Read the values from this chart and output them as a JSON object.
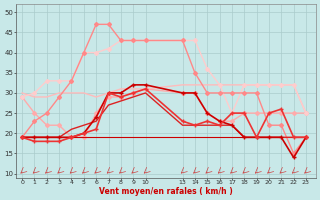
{
  "bg_color": "#c8e8e8",
  "grid_color": "#aacccc",
  "xlabel": "Vent moyen/en rafales ( km/h )",
  "xlabel_color": "#cc0000",
  "ylim": [
    9,
    52
  ],
  "yticks": [
    10,
    15,
    20,
    25,
    30,
    35,
    40,
    45,
    50
  ],
  "x_ticks": [
    0,
    1,
    2,
    3,
    4,
    5,
    6,
    7,
    8,
    9,
    10,
    13,
    14,
    15,
    16,
    17,
    18,
    19,
    20,
    21,
    22,
    23
  ],
  "x_labels": [
    "0",
    "1",
    "2",
    "3",
    "4",
    "5",
    "6",
    "7",
    "8",
    "9",
    "10",
    "13",
    "14",
    "15",
    "16",
    "17",
    "18",
    "19",
    "20",
    "21",
    "22",
    "23"
  ],
  "xlim": [
    -0.5,
    23.8
  ],
  "lines": [
    {
      "x": [
        0,
        1,
        2,
        3,
        4,
        5,
        6,
        7,
        8,
        9,
        10,
        13,
        14,
        15,
        16,
        17,
        18,
        19,
        20,
        21,
        22,
        23
      ],
      "y": [
        29,
        25,
        22,
        22,
        19,
        19,
        25,
        29,
        29,
        30,
        31,
        30,
        30,
        25,
        23,
        23,
        25,
        25,
        25,
        25,
        25,
        25
      ],
      "color": "#ffaaaa",
      "lw": 1.0,
      "marker": "D",
      "ms": 2.0,
      "zorder": 2
    },
    {
      "x": [
        0,
        1,
        2,
        3,
        4,
        5,
        6,
        7,
        8,
        9,
        10,
        13,
        14,
        15,
        16,
        17,
        18,
        19,
        20,
        21,
        22,
        23
      ],
      "y": [
        30,
        29,
        29,
        30,
        30,
        30,
        29,
        30,
        31,
        31,
        31,
        32,
        32,
        32,
        32,
        32,
        32,
        32,
        32,
        32,
        32,
        25
      ],
      "color": "#ffbbbb",
      "lw": 1.0,
      "marker": null,
      "ms": 0,
      "zorder": 2
    },
    {
      "x": [
        0,
        1,
        2,
        3,
        4,
        5,
        6,
        7,
        8,
        9,
        10,
        13,
        14,
        15,
        16,
        17,
        18,
        19,
        20,
        21,
        22,
        23
      ],
      "y": [
        29,
        30,
        33,
        33,
        33,
        40,
        40,
        41,
        43,
        43,
        43,
        43,
        43,
        36,
        32,
        25,
        32,
        32,
        32,
        32,
        32,
        25
      ],
      "color": "#ffcccc",
      "lw": 1.0,
      "marker": "D",
      "ms": 2.0,
      "zorder": 2
    },
    {
      "x": [
        0,
        1,
        2,
        3,
        4,
        5,
        6,
        7,
        8,
        9,
        10,
        13,
        14,
        15,
        16,
        17,
        18,
        19,
        20,
        21,
        22,
        23
      ],
      "y": [
        19,
        23,
        25,
        29,
        33,
        40,
        47,
        47,
        43,
        43,
        43,
        43,
        35,
        30,
        30,
        30,
        30,
        30,
        22,
        22,
        15,
        19
      ],
      "color": "#ff8888",
      "lw": 1.0,
      "marker": "D",
      "ms": 2.0,
      "zorder": 3
    },
    {
      "x": [
        0,
        1,
        2,
        3,
        4,
        5,
        6,
        7,
        8,
        9,
        10,
        13,
        14,
        15,
        16,
        17,
        18,
        19,
        20,
        21,
        22,
        23
      ],
      "y": [
        19,
        19,
        19,
        19,
        19,
        20,
        24,
        30,
        30,
        32,
        32,
        30,
        30,
        25,
        23,
        22,
        19,
        19,
        19,
        19,
        14,
        19
      ],
      "color": "#cc0000",
      "lw": 1.2,
      "marker": "+",
      "ms": 3.5,
      "zorder": 4
    },
    {
      "x": [
        0,
        1,
        2,
        3,
        4,
        5,
        6,
        7,
        8,
        9,
        10,
        13,
        14,
        15,
        16,
        17,
        18,
        19,
        20,
        21,
        22,
        23
      ],
      "y": [
        19,
        18,
        18,
        18,
        19,
        20,
        21,
        30,
        29,
        30,
        31,
        23,
        22,
        23,
        22,
        25,
        25,
        19,
        25,
        26,
        19,
        19
      ],
      "color": "#ee3333",
      "lw": 1.2,
      "marker": "+",
      "ms": 3.5,
      "zorder": 4
    },
    {
      "x": [
        0,
        1,
        2,
        3,
        4,
        5,
        6,
        7,
        8,
        9,
        10,
        13,
        14,
        15,
        16,
        17,
        18,
        19,
        20,
        21,
        22,
        23
      ],
      "y": [
        19,
        19,
        19,
        19,
        21,
        22,
        23,
        27,
        28,
        29,
        30,
        22,
        22,
        22,
        22,
        22,
        19,
        19,
        19,
        19,
        19,
        19
      ],
      "color": "#dd2222",
      "lw": 1.0,
      "marker": null,
      "ms": 0,
      "zorder": 3
    },
    {
      "x": [
        0,
        1,
        2,
        3,
        4,
        5,
        6,
        7,
        8,
        9,
        10,
        13,
        14,
        15,
        16,
        17,
        18,
        19,
        20,
        21,
        22,
        23
      ],
      "y": [
        19,
        19,
        19,
        19,
        19,
        19,
        19,
        19,
        19,
        19,
        19,
        19,
        19,
        19,
        19,
        19,
        19,
        19,
        19,
        19,
        19,
        19
      ],
      "color": "#cc0000",
      "lw": 0.8,
      "marker": null,
      "ms": 0,
      "zorder": 2
    }
  ],
  "wind_symbol_x": [
    0,
    1,
    2,
    3,
    4,
    5,
    6,
    7,
    8,
    9,
    10,
    13,
    14,
    15,
    16,
    17,
    18,
    19,
    20,
    21,
    22,
    23
  ],
  "wind_symbol_y": 10.3,
  "wind_color": "#cc4444"
}
